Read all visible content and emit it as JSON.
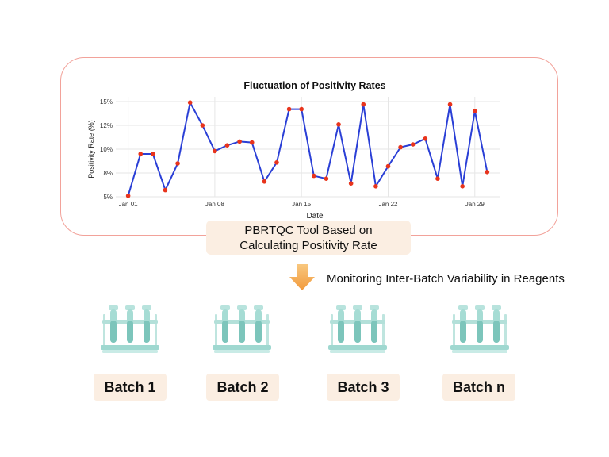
{
  "chart_data": {
    "type": "line",
    "title": "Fluctuation of Positivity Rates",
    "xlabel": "Date",
    "ylabel": "Positivity Rate (%)",
    "ylim": [
      5,
      15.5
    ],
    "yticks": [
      5,
      7.5,
      10,
      12.5,
      15
    ],
    "ytick_labels": [
      "5%",
      "8%",
      "10%",
      "12%",
      "15%"
    ],
    "xlim": [
      "2024-12-31",
      "2025-01-31"
    ],
    "xticks": [
      "2025-01-01",
      "2025-01-08",
      "2025-01-15",
      "2025-01-22",
      "2025-01-29"
    ],
    "xtick_labels": [
      "Jan 01",
      "Jan 08",
      "Jan 15",
      "Jan 22",
      "Jan 29"
    ],
    "grid": true,
    "series": [
      {
        "x": [
          "2025-01-01",
          "2025-01-02",
          "2025-01-03",
          "2025-01-04",
          "2025-01-05",
          "2025-01-06",
          "2025-01-07",
          "2025-01-08",
          "2025-01-09",
          "2025-01-10",
          "2025-01-11",
          "2025-01-12",
          "2025-01-13",
          "2025-01-14",
          "2025-01-15",
          "2025-01-16",
          "2025-01-17",
          "2025-01-18",
          "2025-01-19",
          "2025-01-20",
          "2025-01-21",
          "2025-01-22",
          "2025-01-23",
          "2025-01-24",
          "2025-01-25",
          "2025-01-26",
          "2025-01-27",
          "2025-01-28",
          "2025-01-29",
          "2025-01-30"
        ],
        "values": [
          5.1,
          9.5,
          9.5,
          5.7,
          8.5,
          14.9,
          12.5,
          9.8,
          10.4,
          10.8,
          10.7,
          6.6,
          8.6,
          14.2,
          14.2,
          7.2,
          6.9,
          12.6,
          6.4,
          14.7,
          6.1,
          8.2,
          10.2,
          10.5,
          11.1,
          6.9,
          14.7,
          6.1,
          14.0,
          7.6
        ],
        "line_color": "#2a3fd6",
        "marker_color": "#e8341c"
      }
    ]
  },
  "diagram": {
    "tool_line1": "PBRTQC Tool Based on",
    "tool_line2": "Calculating Positivity Rate",
    "monitor_label": "Monitoring Inter-Batch Variability in Reagents",
    "batches": [
      "Batch 1",
      "Batch 2",
      "Batch 3",
      "Batch n"
    ],
    "colors": {
      "frame_border": "#f2a29a",
      "label_bg": "#fbeee2",
      "arrow": "#f4a24a",
      "tube": "#9fd8d0"
    },
    "icons": [
      "down-arrow-icon",
      "test-tube-rack-icon"
    ]
  }
}
